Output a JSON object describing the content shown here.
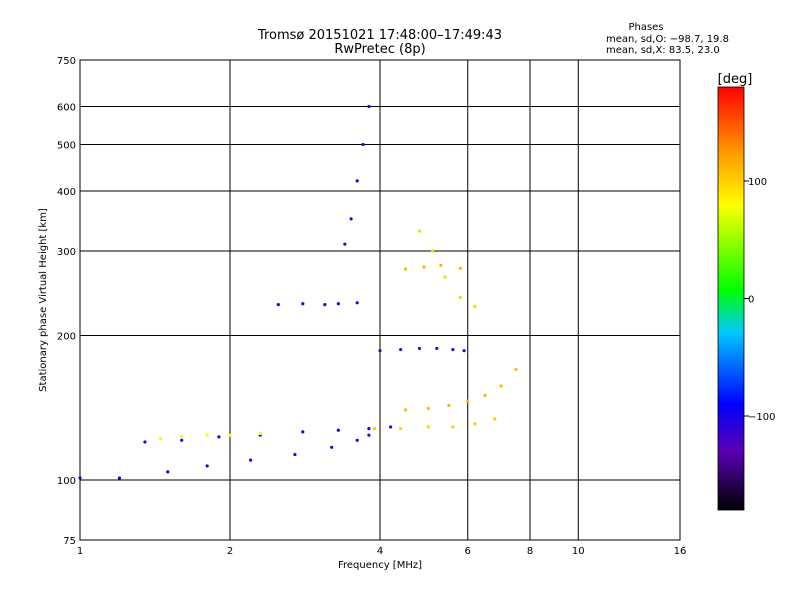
{
  "chart_data": {
    "type": "scatter",
    "title": "Tromsø 20151021 17:48:00–17:49:43",
    "subtitle": "RwPretec (8p)",
    "xlabel": "Frequency [MHz]",
    "ylabel": "Stationary phase Virtual Height [km]",
    "x_scale": "log",
    "y_scale": "log",
    "xlim": [
      1,
      16
    ],
    "ylim": [
      75,
      750
    ],
    "x_ticks": [
      1,
      2,
      4,
      6,
      8,
      10,
      16
    ],
    "x_tick_labels": [
      "1",
      "2",
      "4",
      "6",
      "8",
      "10",
      "16"
    ],
    "y_ticks": [
      75,
      100,
      200,
      300,
      400,
      500,
      600,
      750
    ],
    "y_tick_labels": [
      "75",
      "100",
      "200",
      "300",
      "400",
      "500",
      "600",
      "750"
    ],
    "grid": true,
    "stats": {
      "heading": "Phases",
      "line1": "mean, sd,O: −98.7, 19.8",
      "line2": "mean, sd,X:  83.5, 23.0"
    },
    "colorbar": {
      "label": "[deg]",
      "range": [
        -180,
        180
      ],
      "ticks": [
        100,
        0,
        -100
      ],
      "tick_labels": [
        "100",
        "0",
        "−100"
      ],
      "colors": [
        "#000000",
        "#5a00b4",
        "#0000ff",
        "#00c8ff",
        "#00ff00",
        "#ffff00",
        "#ff8c00",
        "#ff0000"
      ]
    },
    "traces": [
      {
        "x": [
          1.0,
          1.2,
          1.5,
          1.8,
          2.2,
          2.7,
          3.2,
          3.6,
          3.8
        ],
        "y": [
          101,
          101,
          104,
          107,
          110,
          113,
          117,
          121,
          124
        ],
        "phase": -95
      },
      {
        "x": [
          1.35,
          1.6,
          1.9,
          2.3,
          2.8,
          3.3,
          3.8,
          4.2
        ],
        "y": [
          120,
          121,
          123,
          124,
          126,
          127,
          128,
          129
        ],
        "phase": -100
      },
      {
        "x": [
          1.45,
          1.6,
          1.8,
          2.0,
          2.3
        ],
        "y": [
          122,
          123,
          124,
          124,
          125
        ],
        "phase": 80
      },
      {
        "x": [
          3.9,
          4.4,
          5.0,
          5.6,
          6.2,
          6.8
        ],
        "y": [
          128,
          128,
          129,
          129,
          131,
          134
        ],
        "phase": 100
      },
      {
        "x": [
          4.5,
          5.0,
          5.5,
          6.0,
          6.5,
          7.0,
          7.5
        ],
        "y": [
          140,
          141,
          143,
          146,
          150,
          157,
          170
        ],
        "phase": 110
      },
      {
        "x": [
          3.4,
          3.5,
          3.6,
          3.7,
          3.8
        ],
        "y": [
          310,
          350,
          420,
          500,
          600
        ],
        "phase": -110
      },
      {
        "x": [
          2.5,
          2.8,
          3.1,
          3.3,
          3.6
        ],
        "y": [
          232,
          233,
          232,
          233,
          234
        ],
        "phase": -100
      },
      {
        "x": [
          4.0,
          4.4,
          4.8,
          5.2,
          5.6,
          5.9
        ],
        "y": [
          186,
          187,
          188,
          188,
          187,
          186
        ],
        "phase": -105
      },
      {
        "x": [
          4.5,
          4.9,
          5.3,
          5.8
        ],
        "y": [
          275,
          278,
          280,
          276
        ],
        "phase": 110
      },
      {
        "x": [
          4.8,
          5.1,
          5.4,
          5.8,
          6.2
        ],
        "y": [
          330,
          300,
          265,
          240,
          230
        ],
        "phase": 60
      }
    ]
  }
}
